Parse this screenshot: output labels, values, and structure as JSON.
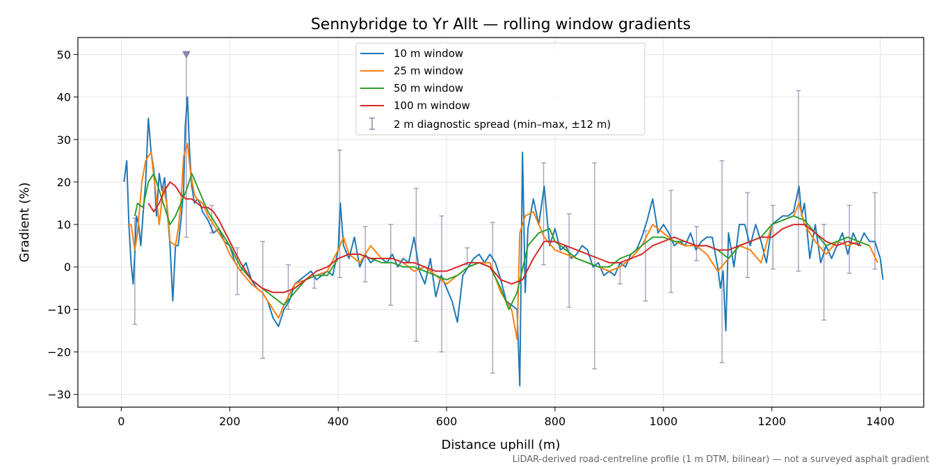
{
  "chart_data": {
    "type": "line",
    "title": "Sennybridge to Yr Allt — rolling window gradients",
    "xlabel": "Distance uphill (m)",
    "ylabel": "Gradient (%)",
    "footnote": "LiDAR-derived road-centreline profile (1 m DTM, bilinear) — not a surveyed asphalt gradient",
    "xlim": [
      -80,
      1480
    ],
    "ylim": [
      -33,
      54
    ],
    "xticks": [
      0,
      200,
      400,
      600,
      800,
      1000,
      1200,
      1400
    ],
    "yticks": [
      -30,
      -20,
      -10,
      0,
      10,
      20,
      30,
      40,
      50
    ],
    "grid": true,
    "legend_position": "top-center",
    "series": [
      {
        "name": "10 m window",
        "color": "#1f77b4",
        "x": [
          5,
          10,
          14,
          18,
          22,
          25,
          28,
          32,
          36,
          40,
          45,
          50,
          55,
          60,
          65,
          70,
          75,
          80,
          85,
          90,
          95,
          100,
          105,
          110,
          115,
          118,
          122,
          126,
          130,
          135,
          140,
          145,
          150,
          160,
          170,
          180,
          190,
          200,
          210,
          220,
          230,
          240,
          250,
          260,
          270,
          280,
          290,
          300,
          310,
          320,
          330,
          340,
          350,
          360,
          370,
          380,
          390,
          400,
          404,
          410,
          420,
          430,
          440,
          450,
          460,
          470,
          480,
          490,
          500,
          510,
          520,
          530,
          540,
          550,
          560,
          570,
          580,
          590,
          600,
          610,
          620,
          630,
          640,
          650,
          660,
          670,
          680,
          690,
          700,
          710,
          720,
          730,
          735,
          740,
          745,
          750,
          760,
          770,
          780,
          790,
          800,
          810,
          820,
          830,
          840,
          850,
          860,
          870,
          880,
          890,
          900,
          910,
          920,
          930,
          940,
          950,
          960,
          970,
          980,
          990,
          1000,
          1010,
          1020,
          1030,
          1040,
          1050,
          1060,
          1070,
          1080,
          1090,
          1100,
          1105,
          1110,
          1115,
          1120,
          1130,
          1140,
          1150,
          1160,
          1170,
          1180,
          1190,
          1200,
          1210,
          1220,
          1230,
          1240,
          1250,
          1255,
          1260,
          1270,
          1280,
          1290,
          1300,
          1310,
          1320,
          1330,
          1340,
          1350,
          1360,
          1370,
          1380,
          1390,
          1400,
          1405
        ],
        "y": [
          20,
          25,
          10,
          1,
          -4,
          3,
          12,
          10,
          5,
          12,
          20,
          35,
          27,
          23,
          12,
          22,
          18,
          21,
          13,
          5,
          -8,
          5,
          5,
          11,
          18,
          33,
          40,
          27,
          19,
          15,
          16,
          15,
          13,
          11,
          8,
          9,
          6,
          5,
          1,
          -1,
          1,
          -3,
          -5,
          -6,
          -8,
          -12,
          -14,
          -10,
          -8,
          -4,
          -3,
          -2,
          -1,
          -3,
          -2,
          -1,
          -2,
          4,
          15,
          5,
          2,
          7,
          0,
          3,
          1,
          2,
          2,
          1,
          3,
          0,
          2,
          1,
          7,
          -1,
          -4,
          2,
          -7,
          -2,
          -5,
          -8,
          -13,
          -2,
          0,
          2,
          3,
          1,
          3,
          1,
          -3,
          -8,
          -9,
          -10,
          -28,
          27,
          -6,
          9,
          16,
          10,
          19,
          5,
          9,
          4,
          5,
          2,
          3,
          5,
          4,
          0,
          1,
          -2,
          -1,
          -2,
          1,
          0,
          3,
          4,
          7,
          11,
          16,
          8,
          10,
          8,
          5,
          6,
          5,
          8,
          4,
          6,
          7,
          7,
          0,
          -5,
          -1,
          -15,
          8,
          0,
          10,
          10,
          5,
          10,
          6,
          1,
          10,
          11,
          12,
          12,
          13,
          19,
          12,
          15,
          2,
          10,
          1,
          5,
          2,
          5,
          8,
          3,
          8,
          5,
          8,
          6,
          6,
          2,
          -3
        ]
      },
      {
        "name": "25 m window",
        "color": "#ff7f0e",
        "x": [
          12,
          18,
          25,
          30,
          38,
          45,
          55,
          63,
          70,
          78,
          85,
          90,
          100,
          105,
          110,
          115,
          122,
          128,
          135,
          140,
          150,
          160,
          170,
          180,
          190,
          200,
          220,
          240,
          260,
          270,
          280,
          290,
          300,
          320,
          340,
          360,
          380,
          400,
          410,
          420,
          440,
          460,
          480,
          500,
          520,
          540,
          560,
          580,
          600,
          620,
          640,
          660,
          680,
          700,
          710,
          720,
          730,
          735,
          745,
          760,
          780,
          800,
          820,
          840,
          860,
          880,
          900,
          920,
          940,
          960,
          980,
          1000,
          1020,
          1040,
          1060,
          1080,
          1100,
          1120,
          1140,
          1160,
          1180,
          1200,
          1220,
          1240,
          1250,
          1260,
          1280,
          1300,
          1320,
          1340,
          1360,
          1380,
          1395
        ],
        "y": [
          10,
          10,
          4,
          8,
          20,
          25,
          27,
          18,
          10,
          19,
          14,
          6,
          5,
          9,
          15,
          26,
          29,
          22,
          17,
          16,
          15,
          12,
          10,
          8,
          6,
          3,
          -1,
          -4,
          -6,
          -8,
          -10,
          -12,
          -9,
          -4,
          -3,
          -2,
          -1,
          4,
          7,
          3,
          1,
          5,
          2,
          2,
          1,
          -1,
          0,
          -2,
          -4,
          -2,
          0,
          1,
          1,
          -6,
          -8,
          -10,
          -17,
          8,
          12,
          13,
          7,
          4,
          3,
          2,
          1,
          0,
          -1,
          0,
          2,
          5,
          10,
          8,
          6,
          5,
          5,
          3,
          -1,
          2,
          5,
          4,
          1,
          10,
          11,
          12,
          15,
          10,
          6,
          3,
          6,
          5,
          6,
          5,
          1
        ]
      },
      {
        "name": "50 m window",
        "color": "#2ca02c",
        "x": [
          25,
          30,
          40,
          50,
          60,
          70,
          80,
          90,
          100,
          110,
          120,
          130,
          140,
          150,
          160,
          180,
          200,
          220,
          240,
          260,
          280,
          300,
          320,
          340,
          360,
          380,
          400,
          420,
          440,
          460,
          480,
          500,
          520,
          540,
          560,
          580,
          600,
          620,
          640,
          660,
          680,
          700,
          715,
          730,
          750,
          770,
          790,
          800,
          820,
          840,
          860,
          880,
          900,
          920,
          940,
          960,
          980,
          1000,
          1020,
          1040,
          1060,
          1080,
          1100,
          1120,
          1140,
          1160,
          1180,
          1200,
          1220,
          1240,
          1260,
          1280,
          1300,
          1320,
          1340,
          1360,
          1380
        ],
        "y": [
          12,
          15,
          14,
          20,
          22,
          18,
          14,
          10,
          12,
          15,
          18,
          22,
          19,
          16,
          13,
          9,
          5,
          0,
          -3,
          -5,
          -7,
          -9,
          -6,
          -3,
          -2,
          -2,
          2,
          3,
          3,
          2,
          1,
          1,
          0,
          0,
          -1,
          -2,
          -3,
          -2,
          0,
          1,
          0,
          -5,
          -10,
          -6,
          5,
          8,
          9,
          6,
          4,
          2,
          1,
          0,
          0,
          2,
          3,
          5,
          7,
          7,
          6,
          6,
          5,
          5,
          4,
          2,
          5,
          6,
          7,
          10,
          11,
          12,
          11,
          8,
          5,
          6,
          7,
          6,
          5
        ]
      },
      {
        "name": "100 m window",
        "color": "#d62728",
        "x": [
          50,
          60,
          70,
          80,
          90,
          100,
          110,
          120,
          130,
          140,
          150,
          160,
          170,
          180,
          200,
          220,
          240,
          260,
          280,
          300,
          320,
          340,
          360,
          380,
          400,
          420,
          440,
          460,
          480,
          500,
          520,
          540,
          560,
          580,
          600,
          620,
          640,
          660,
          680,
          700,
          720,
          740,
          760,
          780,
          800,
          820,
          840,
          860,
          880,
          900,
          920,
          940,
          960,
          980,
          1000,
          1020,
          1040,
          1060,
          1080,
          1100,
          1120,
          1140,
          1160,
          1180,
          1200,
          1220,
          1240,
          1260,
          1280,
          1300,
          1320,
          1340,
          1365
        ],
        "y": [
          15,
          13,
          15,
          18,
          20,
          19,
          17,
          16,
          16,
          15,
          14,
          14,
          13,
          11,
          6,
          1,
          -3,
          -5,
          -6,
          -6,
          -5,
          -3,
          -1,
          0,
          2,
          3,
          3,
          2,
          2,
          2,
          1,
          1,
          0,
          -1,
          -1,
          0,
          1,
          1,
          0,
          -3,
          -4,
          -3,
          2,
          6,
          6,
          5,
          4,
          3,
          2,
          1,
          1,
          2,
          3,
          5,
          6,
          7,
          6,
          5,
          5,
          4,
          4,
          5,
          6,
          7,
          7,
          9,
          10,
          10,
          8,
          6,
          5,
          6,
          5
        ]
      },
      {
        "name": "2 m diagnostic spread (min–max, ±12 m)",
        "color": "#8f86ad",
        "errorbars": [
          {
            "x": 25,
            "min": -13.5,
            "max": 11.5
          },
          {
            "x": 120,
            "min": 7,
            "max": 50
          },
          {
            "x": 167,
            "min": 8,
            "max": 14.5
          },
          {
            "x": 214,
            "min": -6.5,
            "max": 4.5
          },
          {
            "x": 261,
            "min": -21.5,
            "max": 6
          },
          {
            "x": 308,
            "min": -10,
            "max": 0.5
          },
          {
            "x": 356,
            "min": -5,
            "max": -2
          },
          {
            "x": 403,
            "min": -2.5,
            "max": 27.5
          },
          {
            "x": 450,
            "min": -3.5,
            "max": 9.5
          },
          {
            "x": 497,
            "min": -9,
            "max": 10
          },
          {
            "x": 544,
            "min": -17.5,
            "max": 18.5
          },
          {
            "x": 591,
            "min": -20,
            "max": 12
          },
          {
            "x": 638,
            "min": 0.5,
            "max": 4.5
          },
          {
            "x": 685,
            "min": -25,
            "max": 10.5
          },
          {
            "x": 779,
            "min": 0.5,
            "max": 24.5
          },
          {
            "x": 826,
            "min": -9.5,
            "max": 12.5
          },
          {
            "x": 873,
            "min": -24,
            "max": 24.5
          },
          {
            "x": 920,
            "min": -4,
            "max": 1
          },
          {
            "x": 967,
            "min": -8,
            "max": 8.5
          },
          {
            "x": 1014,
            "min": -6,
            "max": 18
          },
          {
            "x": 1061,
            "min": 1.5,
            "max": 9.5
          },
          {
            "x": 1108,
            "min": -22.5,
            "max": 25
          },
          {
            "x": 1155,
            "min": -2.5,
            "max": 17.5
          },
          {
            "x": 1202,
            "min": -0.5,
            "max": 14.5
          },
          {
            "x": 1249,
            "min": -1,
            "max": 41.5
          },
          {
            "x": 1296,
            "min": -12.5,
            "max": 10
          },
          {
            "x": 1343,
            "min": -1.5,
            "max": 14.5
          },
          {
            "x": 1390,
            "min": -0.5,
            "max": 17.5
          }
        ],
        "clipped_marker": {
          "x": 120,
          "y": 50
        }
      }
    ]
  }
}
